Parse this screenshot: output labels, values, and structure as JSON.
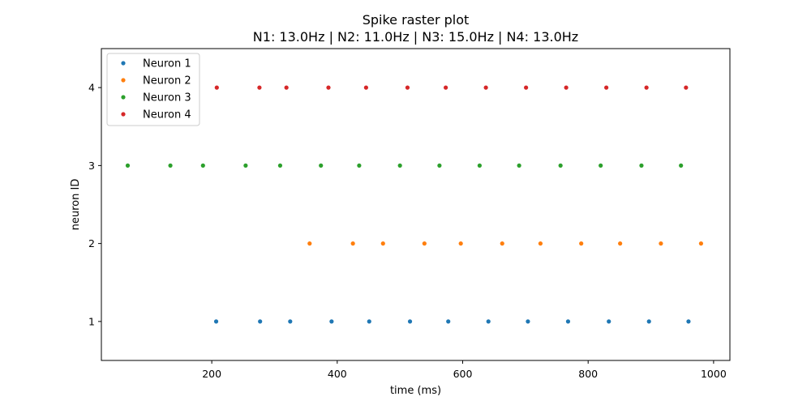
{
  "chart_data": {
    "type": "scatter",
    "title": "Spike raster plot",
    "subtitle": "N1: 13.0Hz | N2: 11.0Hz | N3: 15.0Hz | N4: 13.0Hz",
    "xlabel": "time (ms)",
    "ylabel": "neuron ID",
    "xlim": [
      24,
      1026
    ],
    "ylim": [
      0.5,
      4.5
    ],
    "xticks": [
      200,
      400,
      600,
      800,
      1000
    ],
    "yticks": [
      1,
      2,
      3,
      4
    ],
    "grid": false,
    "legend_position": "top-left",
    "series": [
      {
        "name": "Neuron 1",
        "color": "#1f77b4",
        "y": 1,
        "x": [
          207,
          277,
          325,
          391,
          451,
          516,
          577,
          641,
          704,
          768,
          833,
          897,
          960
        ]
      },
      {
        "name": "Neuron 2",
        "color": "#ff7f0e",
        "y": 2,
        "x": [
          356,
          425,
          473,
          539,
          597,
          663,
          724,
          789,
          851,
          916,
          980
        ]
      },
      {
        "name": "Neuron 3",
        "color": "#2ca02c",
        "y": 3,
        "x": [
          66,
          134,
          186,
          254,
          309,
          374,
          435,
          500,
          563,
          627,
          690,
          756,
          820,
          885,
          948
        ]
      },
      {
        "name": "Neuron 4",
        "color": "#d62728",
        "y": 4,
        "x": [
          208,
          276,
          319,
          386,
          446,
          512,
          573,
          637,
          701,
          765,
          829,
          893,
          956
        ]
      }
    ]
  }
}
